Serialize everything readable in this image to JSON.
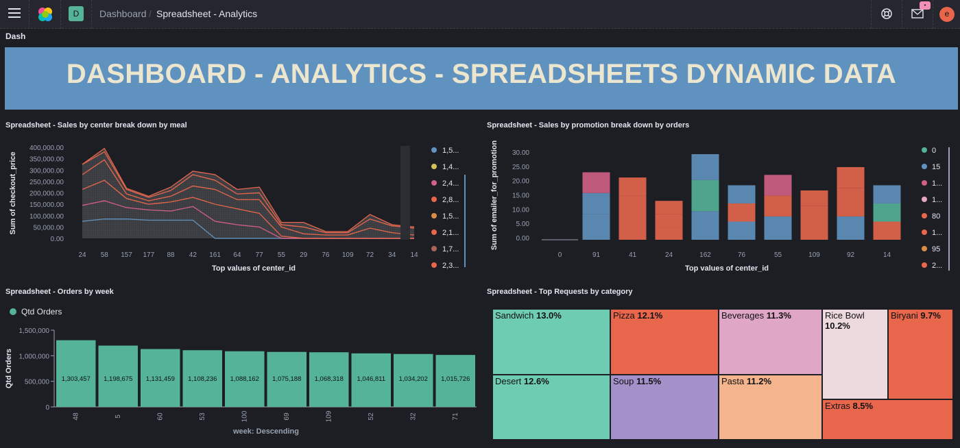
{
  "header": {
    "space_initial": "D",
    "breadcrumb_parent": "Dashboard",
    "breadcrumb_current": "Spreadsheet - Analytics",
    "badge": "•",
    "avatar_initial": "e"
  },
  "dash_label": "Dash",
  "banner": "DASHBOARD - ANALYTICS - SPREADSHEETS DYNAMIC DATA",
  "panels": {
    "p1_title": "Spreadsheet - Sales by center break down by meal",
    "p2_title": "Spreadsheet - Sales by promotion break down by orders",
    "p3_title": "Spreadsheet - Orders by week",
    "p4_title": "Spreadsheet - Top Requests by category"
  },
  "chart_data": [
    {
      "type": "area",
      "title": "Spreadsheet - Sales by center break down by meal",
      "xlabel": "Top values of center_id",
      "ylabel": "Sum of checkout_price",
      "ylim": [
        0,
        400000
      ],
      "yticks": [
        "400,000.00",
        "350,000.00",
        "300,000.00",
        "250,000.00",
        "200,000.00",
        "150,000.00",
        "100,000.00",
        "50,000.00",
        "0.00"
      ],
      "categories": [
        "24",
        "58",
        "157",
        "177",
        "88",
        "42",
        "161",
        "64",
        "77",
        "55",
        "29",
        "76",
        "109",
        "72",
        "34",
        "14"
      ],
      "stack_series": [
        {
          "name": "1,5...",
          "color": "#6092c0",
          "values": [
            75000,
            85000,
            85000,
            80000,
            80000,
            80000,
            0,
            0,
            0,
            0,
            0,
            0,
            0,
            0,
            0,
            0
          ]
        },
        {
          "name": "1,4...",
          "color": "#d36086",
          "values": [
            70000,
            80000,
            50000,
            45000,
            40000,
            60000,
            75000,
            60000,
            50000,
            0,
            0,
            0,
            0,
            0,
            0,
            0
          ]
        },
        {
          "name": "2,4...",
          "color": "#e7664c",
          "values": [
            70000,
            90000,
            40000,
            25000,
            40000,
            40000,
            75000,
            70000,
            60000,
            10000,
            0,
            0,
            0,
            0,
            0,
            0
          ]
        },
        {
          "name": "2,8...",
          "color": "#e7664c",
          "values": [
            65000,
            90000,
            20000,
            15000,
            25000,
            50000,
            65000,
            40000,
            60000,
            40000,
            20000,
            15000,
            15000,
            45000,
            25000,
            15000
          ]
        },
        {
          "name": "1,5...",
          "color": "#e7664c",
          "values": [
            45000,
            35000,
            20000,
            15000,
            25000,
            50000,
            40000,
            25000,
            30000,
            10000,
            30000,
            10000,
            10000,
            40000,
            30000,
            30000
          ]
        },
        {
          "name": "2,1...",
          "color": "#e7664c",
          "values": [
            0,
            15000,
            5000,
            5000,
            15000,
            15000,
            25000,
            20000,
            25000,
            10000,
            20000,
            5000,
            5000,
            20000,
            5000,
            5000
          ]
        }
      ],
      "legend": [
        {
          "name": "1,5...",
          "color": "#6092c0"
        },
        {
          "name": "1,4...",
          "color": "#d6bf57"
        },
        {
          "name": "2,4...",
          "color": "#d36086"
        },
        {
          "name": "2,8...",
          "color": "#e7664c"
        },
        {
          "name": "1,5...",
          "color": "#da8b45"
        },
        {
          "name": "2,1...",
          "color": "#e7664c"
        },
        {
          "name": "1,7...",
          "color": "#aa6556"
        },
        {
          "name": "2,3...",
          "color": "#e7664c"
        }
      ]
    },
    {
      "type": "bar",
      "title": "Spreadsheet - Sales by promotion break down by orders",
      "xlabel": "Top values of center_id",
      "ylabel": "Sum of emailer_for_promotion",
      "ylim": [
        0,
        33
      ],
      "yticks": [
        "30.00",
        "25.00",
        "20.00",
        "15.00",
        "10.00",
        "5.00",
        "0.00"
      ],
      "categories": [
        "0",
        "91",
        "41",
        "24",
        "162",
        "76",
        "55",
        "109",
        "92",
        "14"
      ],
      "stacks": [
        [],
        [
          {
            "v": 10,
            "c": "#6092c0"
          },
          {
            "v": 8,
            "c": "#6092c0"
          },
          {
            "v": 8,
            "c": "#d36086"
          }
        ],
        [
          {
            "v": 17,
            "c": "#e7664c"
          },
          {
            "v": 7,
            "c": "#e7664c"
          }
        ],
        [
          {
            "v": 5,
            "c": "#e7664c"
          },
          {
            "v": 5,
            "c": "#e7664c"
          },
          {
            "v": 5,
            "c": "#e7664c"
          }
        ],
        [
          {
            "v": 11,
            "c": "#6092c0"
          },
          {
            "v": 12,
            "c": "#54b399"
          },
          {
            "v": 10,
            "c": "#6092c0"
          }
        ],
        [
          {
            "v": 7,
            "c": "#6092c0"
          },
          {
            "v": 7,
            "c": "#e7664c"
          },
          {
            "v": 7,
            "c": "#6092c0"
          }
        ],
        [
          {
            "v": 9,
            "c": "#6092c0"
          },
          {
            "v": 8,
            "c": "#e7664c"
          },
          {
            "v": 8,
            "c": "#d36086"
          }
        ],
        [
          {
            "v": 13,
            "c": "#e7664c"
          },
          {
            "v": 6,
            "c": "#e7664c"
          }
        ],
        [
          {
            "v": 9,
            "c": "#6092c0"
          },
          {
            "v": 11,
            "c": "#e7664c"
          },
          {
            "v": 8,
            "c": "#e7664c"
          }
        ],
        [
          {
            "v": 7,
            "c": "#e7664c"
          },
          {
            "v": 7,
            "c": "#54b399"
          },
          {
            "v": 7,
            "c": "#6092c0"
          }
        ]
      ],
      "legend": [
        {
          "name": "0",
          "color": "#54b399"
        },
        {
          "name": "15",
          "color": "#6092c0"
        },
        {
          "name": "1...",
          "color": "#d36086"
        },
        {
          "name": "1...",
          "color": "#e7a6c3"
        },
        {
          "name": "80",
          "color": "#e7664c"
        },
        {
          "name": "1...",
          "color": "#e7664c"
        },
        {
          "name": "95",
          "color": "#da8b45"
        },
        {
          "name": "2...",
          "color": "#e7664c"
        }
      ]
    },
    {
      "type": "bar",
      "title": "Spreadsheet - Orders by week",
      "xlabel": "week: Descending",
      "ylabel": "Qtd Orders",
      "ylim": [
        0,
        1500000
      ],
      "yticks": [
        "1,500,000",
        "1,000,000",
        "500,000",
        "0"
      ],
      "legend": "Qtd Orders",
      "color": "#54b399",
      "categories": [
        "48",
        "5",
        "60",
        "53",
        "100",
        "69",
        "109",
        "52",
        "32",
        "71"
      ],
      "values": [
        1303457,
        1198675,
        1131459,
        1108236,
        1088162,
        1075188,
        1068318,
        1046811,
        1034202,
        1015726
      ],
      "value_labels": [
        "1,303,457",
        "1,198,675",
        "1,131,459",
        "1,108,236",
        "1,088,162",
        "1,075,188",
        "1,068,318",
        "1,046,811",
        "1,034,202",
        "1,015,726"
      ]
    },
    {
      "type": "treemap",
      "title": "Spreadsheet - Top Requests by category",
      "items": [
        {
          "name": "Sandwich",
          "pct": "13.0%",
          "value": 13.0,
          "color": "#6dccb1"
        },
        {
          "name": "Desert",
          "pct": "12.6%",
          "value": 12.6,
          "color": "#6dccb1"
        },
        {
          "name": "Pizza",
          "pct": "12.1%",
          "value": 12.1,
          "color": "#e7664c"
        },
        {
          "name": "Soup",
          "pct": "11.5%",
          "value": 11.5,
          "color": "#a591c9"
        },
        {
          "name": "Beverages",
          "pct": "11.3%",
          "value": 11.3,
          "color": "#e0a6c6"
        },
        {
          "name": "Pasta",
          "pct": "11.2%",
          "value": 11.2,
          "color": "#f4b48e"
        },
        {
          "name": "Rice Bowl",
          "pct": "10.2%",
          "value": 10.2,
          "color": "#eddadf"
        },
        {
          "name": "Biryani",
          "pct": "9.7%",
          "value": 9.7,
          "color": "#e7664c"
        },
        {
          "name": "Extras",
          "pct": "8.5%",
          "value": 8.5,
          "color": "#e7664c"
        }
      ]
    }
  ]
}
